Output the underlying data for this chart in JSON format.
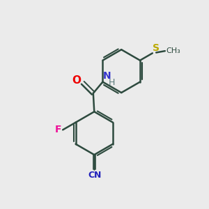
{
  "background_color": "#ebebeb",
  "bond_color": "#2d4a3e",
  "atom_colors": {
    "O": "#ee0000",
    "N": "#3333cc",
    "H": "#5a7a7a",
    "F": "#ee1199",
    "S": "#bbaa00",
    "CN_C": "#2222bb",
    "CN_N": "#2222bb"
  },
  "figsize": [
    3.0,
    3.0
  ],
  "dpi": 100
}
